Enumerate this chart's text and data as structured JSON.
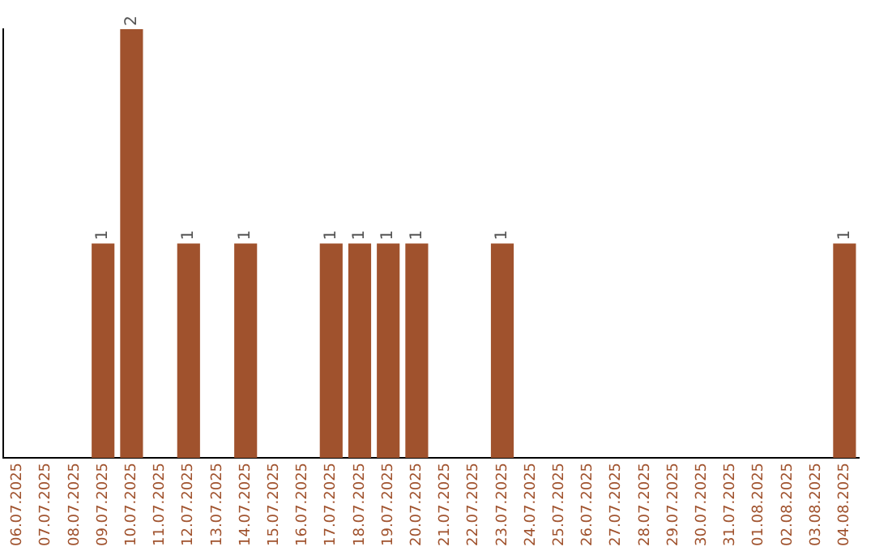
{
  "chart_data": {
    "type": "bar",
    "categories": [
      "06.07.2025",
      "07.07.2025",
      "08.07.2025",
      "09.07.2025",
      "10.07.2025",
      "11.07.2025",
      "12.07.2025",
      "13.07.2025",
      "14.07.2025",
      "15.07.2025",
      "16.07.2025",
      "17.07.2025",
      "18.07.2025",
      "19.07.2025",
      "20.07.2025",
      "21.07.2025",
      "22.07.2025",
      "23.07.2025",
      "24.07.2025",
      "25.07.2025",
      "26.07.2025",
      "27.07.2025",
      "28.07.2025",
      "29.07.2025",
      "30.07.2025",
      "31.07.2025",
      "01.08.2025",
      "02.08.2025",
      "03.08.2025",
      "04.08.2025"
    ],
    "values": [
      0,
      0,
      0,
      1,
      2,
      0,
      1,
      0,
      1,
      0,
      0,
      1,
      1,
      1,
      1,
      0,
      0,
      1,
      0,
      0,
      0,
      0,
      0,
      0,
      0,
      0,
      0,
      0,
      0,
      1
    ],
    "value_labels": [
      null,
      null,
      null,
      "1",
      "2",
      null,
      "1",
      null,
      "1",
      null,
      null,
      "1",
      "1",
      "1",
      "1",
      null,
      null,
      "1",
      null,
      null,
      null,
      null,
      null,
      null,
      null,
      null,
      null,
      null,
      null,
      "1"
    ],
    "color": "#a0522d",
    "grid": false,
    "legend": false
  }
}
